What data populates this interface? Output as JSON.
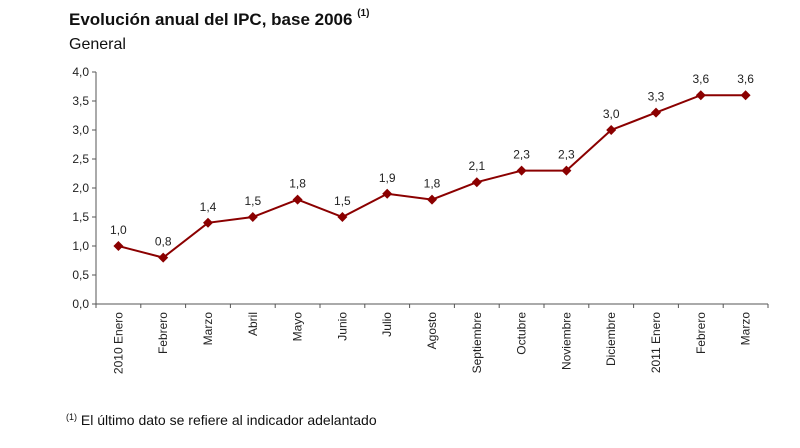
{
  "title": "Evolución anual del IPC, base 2006",
  "title_note": "(1)",
  "subtitle": "General",
  "footnote_mark": "(1)",
  "footnote": "El último dato se refiere al indicador adelantado",
  "colors": {
    "series": "#8B0000",
    "axis": "#555555"
  },
  "chart_data": {
    "type": "line",
    "title": "Evolución anual del IPC, base 2006",
    "categories": [
      "2010 Enero",
      "Febrero",
      "Marzo",
      "Abril",
      "Mayo",
      "Junio",
      "Julio",
      "Agosto",
      "Septiembre",
      "Octubre",
      "Noviembre",
      "Diciembre",
      "2011 Enero",
      "Febrero",
      "Marzo"
    ],
    "values": [
      1.0,
      0.8,
      1.4,
      1.5,
      1.8,
      1.5,
      1.9,
      1.8,
      2.1,
      2.3,
      2.3,
      3.0,
      3.3,
      3.6,
      3.6
    ],
    "data_labels": [
      "1,0",
      "0,8",
      "1,4",
      "1,5",
      "1,8",
      "1,5",
      "1,9",
      "1,8",
      "2,1",
      "2,3",
      "2,3",
      "3,0",
      "3,3",
      "3,6",
      "3,6"
    ],
    "ylim": [
      0,
      4.0
    ],
    "yticks": [
      "0,0",
      "0,5",
      "1,0",
      "1,5",
      "2,0",
      "2,5",
      "3,0",
      "3,5",
      "4,0"
    ],
    "grid": false,
    "marker": "diamond"
  }
}
